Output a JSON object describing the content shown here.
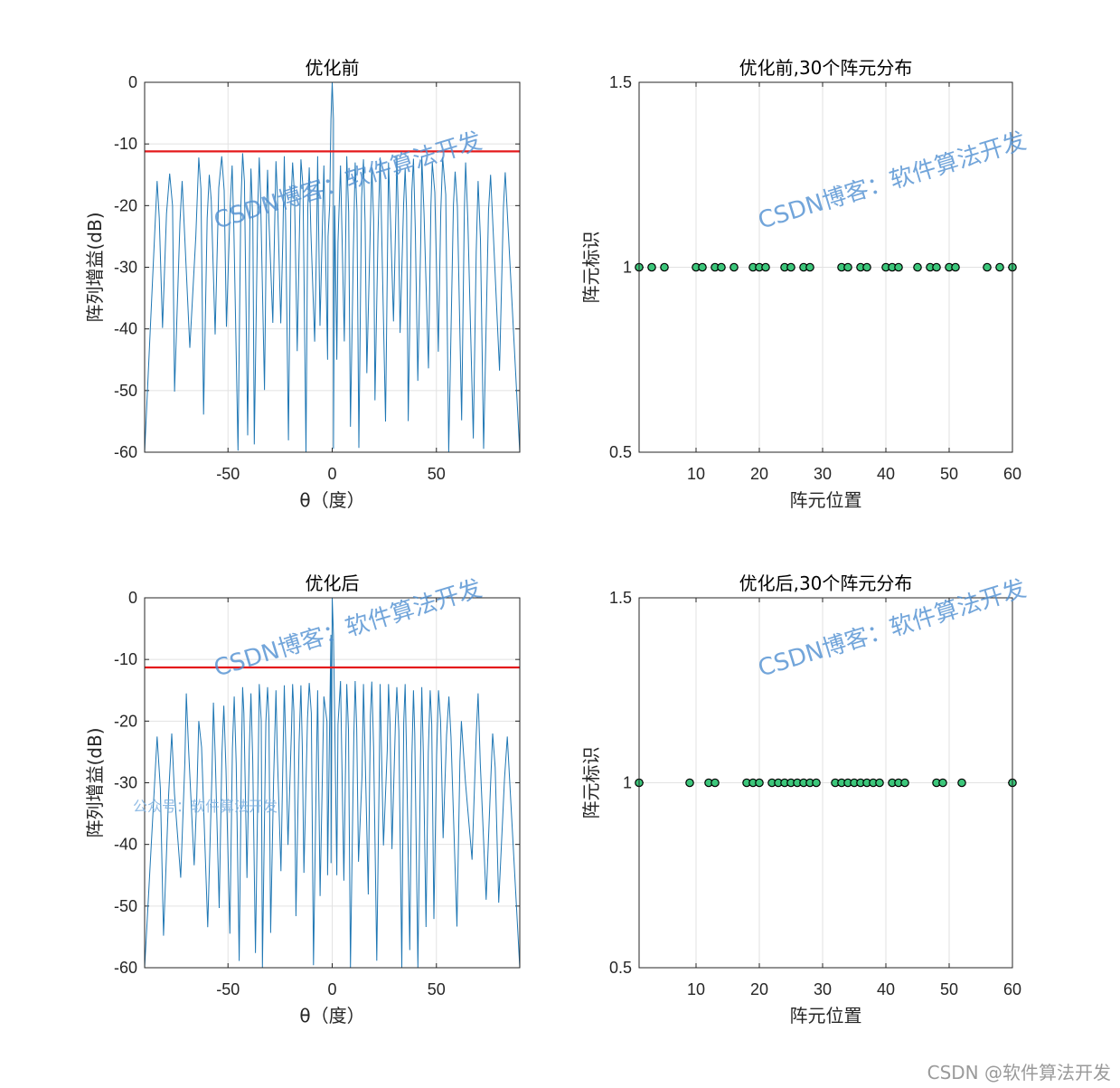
{
  "watermark": {
    "main": "CSDN博客：软件算法开发",
    "public_account": "公众号：软件算法开发",
    "footer": "CSDN @软件算法开发"
  },
  "colors": {
    "pattern_line": "#1f77b4",
    "threshold_line": "#e41a1c",
    "marker_fill": "#3cc67a",
    "marker_edge": "#000000",
    "grid": "#e2e2e2"
  },
  "chart_data": [
    {
      "id": "before_pattern",
      "type": "line",
      "title": "优化前",
      "xlabel": "θ（度）",
      "ylabel": "阵列增益(dB)",
      "xlim": [
        -90,
        90
      ],
      "ylim": [
        -60,
        0
      ],
      "xticks": [
        -50,
        0,
        50
      ],
      "yticks": [
        0,
        -10,
        -20,
        -30,
        -40,
        -50,
        -60
      ],
      "grid": true,
      "threshold_db": -11.2,
      "sidelobe_peaks": [
        {
          "x": -84,
          "y": -16
        },
        {
          "x": -78,
          "y": -14.8
        },
        {
          "x": -72,
          "y": -16
        },
        {
          "x": -64,
          "y": -12.2
        },
        {
          "x": -59,
          "y": -15
        },
        {
          "x": -53,
          "y": -12
        },
        {
          "x": -48,
          "y": -13.5
        },
        {
          "x": -43,
          "y": -11.5
        },
        {
          "x": -39,
          "y": -14
        },
        {
          "x": -35,
          "y": -12.2
        },
        {
          "x": -31,
          "y": -14.2
        },
        {
          "x": -27,
          "y": -12.8
        },
        {
          "x": -23,
          "y": -12
        },
        {
          "x": -19,
          "y": -13
        },
        {
          "x": -15,
          "y": -12.5
        },
        {
          "x": -11,
          "y": -13.8
        },
        {
          "x": -7,
          "y": -12
        },
        {
          "x": -4,
          "y": -13.5
        },
        {
          "x": 4,
          "y": -13.5
        },
        {
          "x": 7,
          "y": -12
        },
        {
          "x": 11,
          "y": -13
        },
        {
          "x": 15,
          "y": -12.5
        },
        {
          "x": 19,
          "y": -13.8
        },
        {
          "x": 23,
          "y": -12.2
        },
        {
          "x": 27,
          "y": -13
        },
        {
          "x": 31,
          "y": -12
        },
        {
          "x": 35,
          "y": -14
        },
        {
          "x": 39,
          "y": -12.4
        },
        {
          "x": 43,
          "y": -12
        },
        {
          "x": 48,
          "y": -13
        },
        {
          "x": 53,
          "y": -12.2
        },
        {
          "x": 59,
          "y": -14.5
        },
        {
          "x": 64,
          "y": -13
        },
        {
          "x": 70,
          "y": -16
        },
        {
          "x": 76,
          "y": -15
        },
        {
          "x": 83,
          "y": -14.6
        }
      ]
    },
    {
      "id": "before_positions",
      "type": "scatter",
      "title": "优化前,30个阵元分布",
      "xlabel": "阵元位置",
      "ylabel": "阵元标识",
      "xlim": [
        1,
        60
      ],
      "ylim": [
        0.5,
        1.5
      ],
      "xticks": [
        10,
        20,
        30,
        40,
        50,
        60
      ],
      "yticks": [
        0.5,
        1,
        1.5
      ],
      "grid": true,
      "x": [
        1,
        3,
        5,
        10,
        11,
        13,
        14,
        16,
        19,
        20,
        21,
        24,
        25,
        27,
        28,
        33,
        34,
        36,
        37,
        40,
        41,
        42,
        45,
        47,
        48,
        50,
        51,
        56,
        58,
        60
      ],
      "y": [
        1,
        1,
        1,
        1,
        1,
        1,
        1,
        1,
        1,
        1,
        1,
        1,
        1,
        1,
        1,
        1,
        1,
        1,
        1,
        1,
        1,
        1,
        1,
        1,
        1,
        1,
        1,
        1,
        1,
        1
      ]
    },
    {
      "id": "after_pattern",
      "type": "line",
      "title": "优化后",
      "xlabel": "θ（度）",
      "ylabel": "阵列增益(dB)",
      "xlim": [
        -90,
        90
      ],
      "ylim": [
        -60,
        0
      ],
      "xticks": [
        -50,
        0,
        50
      ],
      "yticks": [
        0,
        -10,
        -20,
        -30,
        -40,
        -50,
        -60
      ],
      "grid": true,
      "threshold_db": -11.3,
      "sidelobe_peaks": [
        {
          "x": -84,
          "y": -22.5
        },
        {
          "x": -77,
          "y": -22
        },
        {
          "x": -70,
          "y": -15.5
        },
        {
          "x": -64,
          "y": -20
        },
        {
          "x": -57,
          "y": -17
        },
        {
          "x": -52,
          "y": -17.5
        },
        {
          "x": -47,
          "y": -16
        },
        {
          "x": -43,
          "y": -14.5
        },
        {
          "x": -39,
          "y": -15.5
        },
        {
          "x": -35,
          "y": -14
        },
        {
          "x": -31,
          "y": -14.5
        },
        {
          "x": -27,
          "y": -15
        },
        {
          "x": -23,
          "y": -14.2
        },
        {
          "x": -19,
          "y": -14
        },
        {
          "x": -15,
          "y": -14.2
        },
        {
          "x": -11,
          "y": -13.8
        },
        {
          "x": -7,
          "y": -15
        },
        {
          "x": -4,
          "y": -16
        },
        {
          "x": 4,
          "y": -13.5
        },
        {
          "x": 7,
          "y": -14
        },
        {
          "x": 11,
          "y": -13.5
        },
        {
          "x": 15,
          "y": -14
        },
        {
          "x": 19,
          "y": -13.6
        },
        {
          "x": 23,
          "y": -14
        },
        {
          "x": 27,
          "y": -14
        },
        {
          "x": 31,
          "y": -14.5
        },
        {
          "x": 35,
          "y": -14
        },
        {
          "x": 39,
          "y": -15
        },
        {
          "x": 43,
          "y": -14.5
        },
        {
          "x": 47,
          "y": -15
        },
        {
          "x": 51,
          "y": -15
        },
        {
          "x": 56,
          "y": -16
        },
        {
          "x": 62,
          "y": -20
        },
        {
          "x": 70,
          "y": -15.5
        },
        {
          "x": 77,
          "y": -22
        },
        {
          "x": 84,
          "y": -22.5
        }
      ]
    },
    {
      "id": "after_positions",
      "type": "scatter",
      "title": "优化后,30个阵元分布",
      "xlabel": "阵元位置",
      "ylabel": "阵元标识",
      "xlim": [
        1,
        60
      ],
      "ylim": [
        0.5,
        1.5
      ],
      "xticks": [
        10,
        20,
        30,
        40,
        50,
        60
      ],
      "yticks": [
        0.5,
        1,
        1.5
      ],
      "grid": true,
      "x": [
        1,
        9,
        12,
        13,
        18,
        19,
        20,
        22,
        23,
        24,
        25,
        26,
        27,
        28,
        29,
        32,
        33,
        34,
        35,
        36,
        37,
        38,
        39,
        41,
        42,
        43,
        48,
        49,
        52,
        60
      ],
      "y": [
        1,
        1,
        1,
        1,
        1,
        1,
        1,
        1,
        1,
        1,
        1,
        1,
        1,
        1,
        1,
        1,
        1,
        1,
        1,
        1,
        1,
        1,
        1,
        1,
        1,
        1,
        1,
        1,
        1,
        1
      ]
    }
  ]
}
